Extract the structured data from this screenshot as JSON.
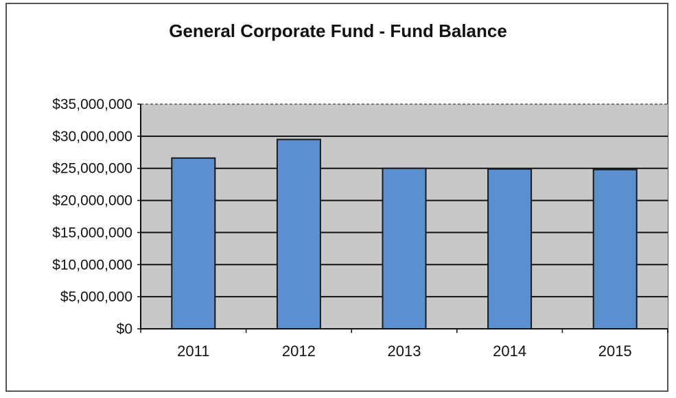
{
  "chart_data": {
    "type": "bar",
    "title": "General Corporate Fund - Fund Balance",
    "xlabel": "",
    "ylabel": "",
    "categories": [
      "2011",
      "2012",
      "2013",
      "2014",
      "2015"
    ],
    "values": [
      26600000,
      29500000,
      25000000,
      24900000,
      24800000
    ],
    "ylim": [
      0,
      35000000
    ],
    "yticks": [
      0,
      5000000,
      10000000,
      15000000,
      20000000,
      25000000,
      30000000,
      35000000
    ],
    "ytick_labels": [
      "$0",
      "$5,000,000",
      "$10,000,000",
      "$15,000,000",
      "$20,000,000",
      "$25,000,000",
      "$30,000,000",
      "$35,000,000"
    ],
    "grid": true,
    "legend": "none",
    "colors": {
      "bar_fill": "#5B8FD0",
      "bar_stroke": "#1a1a1a",
      "plot_background": "#C8C8C8",
      "gridline": "#111111"
    }
  }
}
